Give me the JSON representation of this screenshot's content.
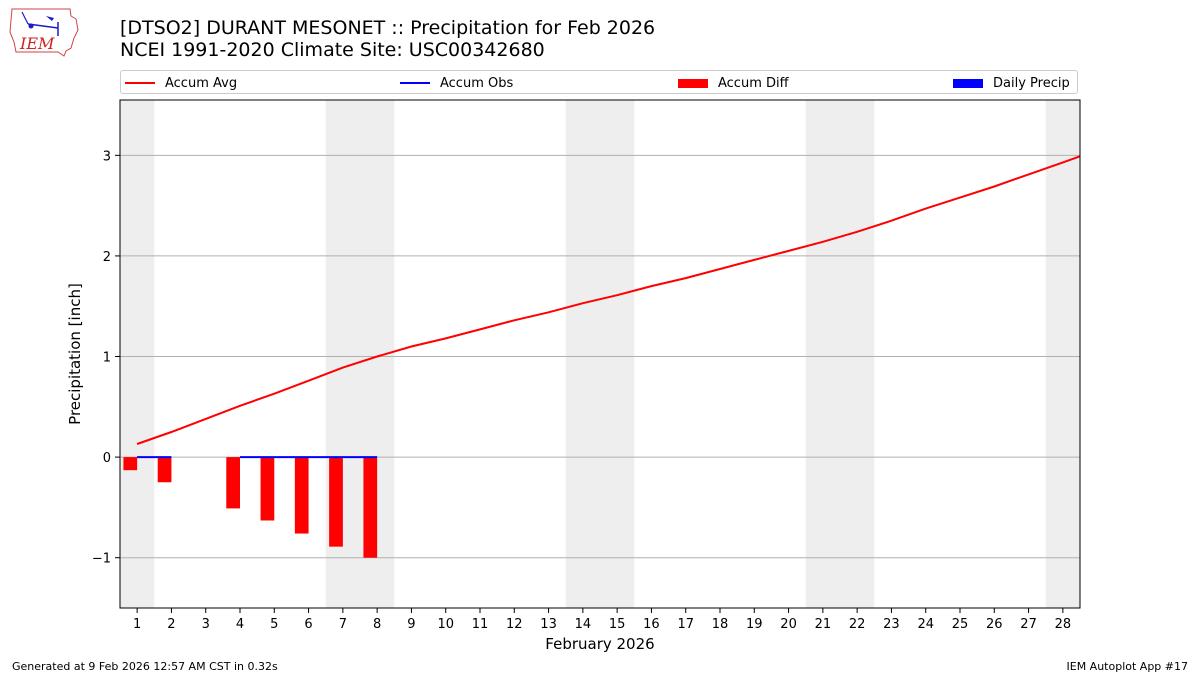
{
  "logo": {
    "text": "IEM"
  },
  "header": {
    "title_line1": "[DTSO2] DURANT MESONET :: Precipitation for Feb 2026",
    "title_line2": "NCEI 1991-2020 Climate Site: USC00342680"
  },
  "legend": {
    "accum_avg": "Accum Avg",
    "accum_obs": "Accum Obs",
    "accum_diff": "Accum Diff",
    "daily_precip": "Daily Precip"
  },
  "footer": {
    "left": "Generated at 9 Feb 2026 12:57 AM CST in 0.32s",
    "right": "IEM Autoplot App #17"
  },
  "colors": {
    "accum_avg": "#ff0000",
    "accum_obs": "#0000ff",
    "accum_diff": "#ff0000",
    "daily_precip": "#0000ff",
    "weekend_shade": "#eeeeee",
    "grid": "#b0b0b0"
  },
  "chart_data": {
    "type": "bar",
    "xlabel": "February 2026",
    "ylabel": "Precipitation [inch]",
    "xlim": [
      0.5,
      28.5
    ],
    "ylim": [
      -1.5,
      3.55
    ],
    "yticks": [
      -1,
      0,
      1,
      2,
      3
    ],
    "ytick_labels": [
      "−1",
      "0",
      "1",
      "2",
      "3"
    ],
    "xticks": [
      1,
      2,
      3,
      4,
      5,
      6,
      7,
      8,
      9,
      10,
      11,
      12,
      13,
      14,
      15,
      16,
      17,
      18,
      19,
      20,
      21,
      22,
      23,
      24,
      25,
      26,
      27,
      28
    ],
    "xtick_labels": [
      "1",
      "2",
      "3",
      "4",
      "5",
      "6",
      "7",
      "8",
      "9",
      "10",
      "11",
      "12",
      "13",
      "14",
      "15",
      "16",
      "17",
      "18",
      "19",
      "20",
      "21",
      "22",
      "23",
      "24",
      "25",
      "26",
      "27",
      "28"
    ],
    "grid": "horizontal",
    "legend_position": "top",
    "weekend_shading": [
      [
        0.5,
        1.5
      ],
      [
        6.5,
        8.5
      ],
      [
        13.5,
        15.5
      ],
      [
        20.5,
        22.5
      ],
      [
        27.5,
        28.5
      ]
    ],
    "series": [
      {
        "name": "Accum Avg",
        "kind": "line",
        "x": [
          1,
          2,
          3,
          4,
          5,
          6,
          7,
          8,
          9,
          10,
          11,
          12,
          13,
          14,
          15,
          16,
          17,
          18,
          19,
          20,
          21,
          22,
          23,
          24,
          25,
          26,
          27,
          28,
          28.5
        ],
        "values": [
          0.13,
          0.25,
          0.38,
          0.51,
          0.63,
          0.76,
          0.89,
          1.0,
          1.1,
          1.18,
          1.27,
          1.36,
          1.44,
          1.53,
          1.61,
          1.7,
          1.78,
          1.87,
          1.96,
          2.05,
          2.14,
          2.24,
          2.35,
          2.47,
          2.58,
          2.69,
          2.81,
          2.93,
          2.99
        ]
      },
      {
        "name": "Accum Obs",
        "kind": "line",
        "x": [
          1,
          2,
          null,
          4,
          5,
          6,
          7,
          8
        ],
        "values": [
          0,
          0,
          null,
          0,
          0,
          0,
          0,
          0
        ]
      },
      {
        "name": "Accum Diff",
        "kind": "bar",
        "x": [
          0.8,
          1.8,
          3.8,
          4.8,
          5.8,
          6.8,
          7.8
        ],
        "values": [
          -0.13,
          -0.25,
          -0.51,
          -0.63,
          -0.76,
          -0.89,
          -1.0
        ]
      },
      {
        "name": "Daily Precip",
        "kind": "bar",
        "x": [],
        "values": []
      }
    ]
  }
}
